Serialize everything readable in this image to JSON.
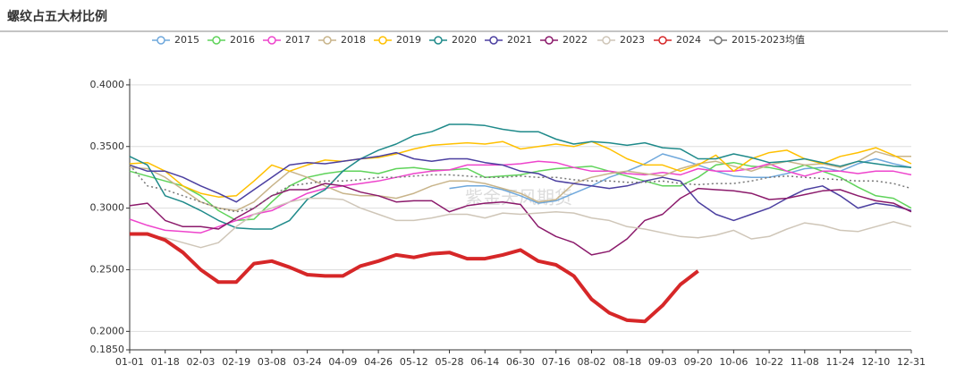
{
  "chart_data": {
    "type": "line",
    "title": "螺纹占五大材比例",
    "watermark": "紫金天风期货",
    "categories": [
      "01-01",
      null,
      "01-18",
      null,
      "02-03",
      null,
      "02-19",
      null,
      "03-08",
      null,
      "03-24",
      null,
      "04-09",
      null,
      "04-26",
      null,
      "05-12",
      null,
      "05-28",
      null,
      "06-14",
      null,
      "06-30",
      null,
      "07-16",
      null,
      "08-02",
      null,
      "08-18",
      null,
      "09-03",
      null,
      "09-20",
      null,
      "10-06",
      null,
      "10-22",
      null,
      "11-08",
      null,
      "11-24",
      null,
      "12-10",
      null,
      "12-31"
    ],
    "ylim": [
      0.185,
      0.405
    ],
    "yticks": [
      {
        "value": 0.185,
        "label": "0.1850"
      },
      {
        "value": 0.2,
        "label": "0.2000"
      },
      {
        "value": 0.25,
        "label": "0.2500"
      },
      {
        "value": 0.3,
        "label": "0.3000"
      },
      {
        "value": 0.35,
        "label": "0.3500"
      },
      {
        "value": 0.4,
        "label": "0.4000"
      }
    ],
    "grid": true,
    "series": [
      {
        "name": "2015",
        "color": "#6fa8dc",
        "values": [
          null,
          null,
          null,
          null,
          null,
          null,
          null,
          null,
          null,
          null,
          null,
          null,
          null,
          null,
          null,
          null,
          null,
          null,
          0.316,
          0.318,
          0.318,
          0.315,
          0.31,
          0.304,
          0.306,
          0.312,
          0.318,
          0.325,
          0.33,
          0.336,
          0.344,
          0.34,
          0.335,
          0.33,
          0.326,
          0.325,
          0.325,
          0.328,
          0.332,
          0.333,
          0.33,
          0.336,
          0.34,
          0.336,
          0.333
        ]
      },
      {
        "name": "2016",
        "color": "#5fd35a",
        "values": [
          0.33,
          0.326,
          0.322,
          0.318,
          0.31,
          0.298,
          0.29,
          0.291,
          0.305,
          0.318,
          0.325,
          0.328,
          0.33,
          0.33,
          0.328,
          0.332,
          0.333,
          0.331,
          0.331,
          0.332,
          0.325,
          0.326,
          0.327,
          0.33,
          0.332,
          0.333,
          0.334,
          0.33,
          0.326,
          0.322,
          0.318,
          0.318,
          0.325,
          0.335,
          0.337,
          0.334,
          0.333,
          0.33,
          0.335,
          0.33,
          0.325,
          0.317,
          0.31,
          0.308,
          0.3
        ]
      },
      {
        "name": "2017",
        "color": "#ee44cc",
        "values": [
          0.291,
          0.286,
          0.282,
          0.281,
          0.28,
          0.285,
          0.29,
          0.295,
          0.298,
          0.305,
          0.312,
          0.316,
          0.318,
          0.32,
          0.322,
          0.325,
          0.328,
          0.33,
          0.331,
          0.335,
          0.335,
          0.335,
          0.336,
          0.338,
          0.337,
          0.333,
          0.33,
          0.33,
          0.328,
          0.327,
          0.329,
          0.327,
          0.332,
          0.33,
          0.33,
          0.332,
          0.336,
          0.33,
          0.326,
          0.33,
          0.33,
          0.328,
          0.33,
          0.33,
          0.327
        ]
      },
      {
        "name": "2018",
        "color": "#c8b48a",
        "values": [
          0.333,
          0.332,
          0.325,
          0.315,
          0.305,
          0.3,
          0.298,
          0.305,
          0.318,
          0.33,
          0.325,
          0.318,
          0.312,
          0.31,
          0.31,
          0.308,
          0.312,
          0.318,
          0.322,
          0.322,
          0.32,
          0.316,
          0.312,
          0.305,
          0.307,
          0.32,
          0.325,
          0.328,
          0.33,
          0.328,
          0.326,
          0.332,
          0.336,
          0.338,
          0.334,
          0.33,
          0.335,
          0.338,
          0.335,
          0.336,
          0.333,
          0.338,
          0.346,
          0.342,
          0.342
        ]
      },
      {
        "name": "2019",
        "color": "#ffc000",
        "values": [
          0.336,
          0.337,
          0.33,
          0.318,
          0.312,
          0.309,
          0.31,
          0.322,
          0.335,
          0.33,
          0.335,
          0.339,
          0.338,
          0.34,
          0.341,
          0.344,
          0.348,
          0.351,
          0.352,
          0.353,
          0.352,
          0.354,
          0.348,
          0.35,
          0.352,
          0.35,
          0.354,
          0.348,
          0.34,
          0.335,
          0.335,
          0.33,
          0.335,
          0.343,
          0.33,
          0.34,
          0.345,
          0.347,
          0.34,
          0.336,
          0.342,
          0.345,
          0.349,
          0.343,
          0.336
        ]
      },
      {
        "name": "2020",
        "color": "#1f8a8a",
        "values": [
          0.342,
          0.335,
          0.31,
          0.305,
          0.298,
          0.29,
          0.284,
          0.283,
          0.283,
          0.29,
          0.307,
          0.315,
          0.33,
          0.34,
          0.347,
          0.352,
          0.359,
          0.362,
          0.368,
          0.368,
          0.367,
          0.364,
          0.362,
          0.362,
          0.356,
          0.352,
          0.354,
          0.353,
          0.351,
          0.353,
          0.349,
          0.348,
          0.34,
          0.34,
          0.344,
          0.341,
          0.337,
          0.338,
          0.34,
          0.337,
          0.334,
          0.338,
          0.336,
          0.334,
          0.333
        ]
      },
      {
        "name": "2021",
        "color": "#4b3fa0",
        "values": [
          0.335,
          0.33,
          0.33,
          0.325,
          0.318,
          0.312,
          0.305,
          0.315,
          0.325,
          0.335,
          0.337,
          0.336,
          0.338,
          0.34,
          0.342,
          0.345,
          0.34,
          0.338,
          0.34,
          0.34,
          0.337,
          0.335,
          0.33,
          0.328,
          0.322,
          0.32,
          0.318,
          0.316,
          0.318,
          0.322,
          0.325,
          0.322,
          0.305,
          0.295,
          0.29,
          0.295,
          0.3,
          0.308,
          0.315,
          0.318,
          0.31,
          0.3,
          0.304,
          0.302,
          0.298
        ]
      },
      {
        "name": "2022",
        "color": "#8b1a6b",
        "values": [
          0.302,
          0.304,
          0.29,
          0.285,
          0.285,
          0.283,
          0.292,
          0.3,
          0.31,
          0.315,
          0.315,
          0.32,
          0.318,
          0.313,
          0.31,
          0.305,
          0.306,
          0.306,
          0.297,
          0.302,
          0.304,
          0.305,
          0.303,
          0.285,
          0.277,
          0.272,
          0.262,
          0.265,
          0.275,
          0.29,
          0.295,
          0.308,
          0.316,
          0.315,
          0.314,
          0.312,
          0.307,
          0.308,
          0.311,
          0.314,
          0.315,
          0.31,
          0.306,
          0.304,
          0.297
        ]
      },
      {
        "name": "2023",
        "color": "#cfc6b8",
        "values": [
          0.279,
          0.278,
          0.276,
          0.272,
          0.268,
          0.272,
          0.285,
          0.295,
          0.3,
          0.305,
          0.308,
          0.308,
          0.307,
          0.3,
          0.295,
          0.29,
          0.29,
          0.292,
          0.295,
          0.295,
          0.292,
          0.296,
          0.295,
          0.296,
          0.297,
          0.296,
          0.292,
          0.29,
          0.285,
          0.283,
          0.28,
          0.277,
          0.276,
          0.278,
          0.282,
          0.275,
          0.277,
          0.283,
          0.288,
          0.286,
          0.282,
          0.281,
          0.285,
          0.289,
          0.285
        ]
      },
      {
        "name": "2024",
        "color": "#d62728",
        "values": [
          0.279,
          0.279,
          0.274,
          0.264,
          0.25,
          0.24,
          0.24,
          0.255,
          0.257,
          0.252,
          0.246,
          0.245,
          0.245,
          0.253,
          0.257,
          0.262,
          0.26,
          0.263,
          0.264,
          0.259,
          0.259,
          0.262,
          0.266,
          0.257,
          0.254,
          0.245,
          0.226,
          0.215,
          0.209,
          0.208,
          0.221,
          0.238,
          0.249,
          null,
          null,
          null,
          null,
          null,
          null,
          null,
          null,
          null,
          null,
          null,
          null
        ]
      },
      {
        "name": "2015-2023均值",
        "color": "#777777",
        "values": [
          0.335,
          0.318,
          0.315,
          0.31,
          0.305,
          0.3,
          0.297,
          0.3,
          0.31,
          0.318,
          0.32,
          0.322,
          0.322,
          0.323,
          0.325,
          0.325,
          0.326,
          0.327,
          0.327,
          0.326,
          0.325,
          0.325,
          0.326,
          0.325,
          0.325,
          0.323,
          0.322,
          0.322,
          0.321,
          0.321,
          0.322,
          0.32,
          0.319,
          0.32,
          0.32,
          0.322,
          0.325,
          0.326,
          0.325,
          0.324,
          0.323,
          0.322,
          0.322,
          0.32,
          0.316
        ]
      }
    ]
  }
}
